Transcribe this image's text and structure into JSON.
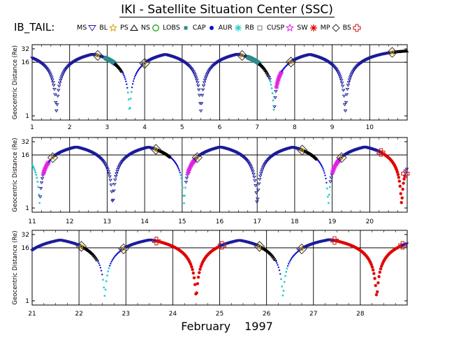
{
  "title": "IKI - Satellite Situation Center (SSC)",
  "legend_label": "IB_TAIL:",
  "legend": [
    {
      "label": "MS",
      "symbol": "triangle-down",
      "color": "#1a1a9a",
      "icon": "triangle-down-icon"
    },
    {
      "label": "BL",
      "symbol": "star-open",
      "color": "#d4a000",
      "icon": "star-icon"
    },
    {
      "label": "PS",
      "symbol": "triangle-up",
      "color": "#000000",
      "icon": "triangle-up-icon"
    },
    {
      "label": "NS",
      "symbol": "circle-open",
      "color": "#22b022",
      "icon": "circle-icon"
    },
    {
      "label": "LOBS",
      "symbol": "square",
      "color": "#2e8b8b",
      "icon": "square-icon"
    },
    {
      "label": "CAP",
      "symbol": "dot",
      "color": "#1010d0",
      "icon": "dot-icon"
    },
    {
      "label": "AUR",
      "symbol": "asterisk",
      "color": "#22cccc",
      "icon": "asterisk-icon"
    },
    {
      "label": "RB",
      "symbol": "square-open",
      "color": "#555555",
      "icon": "square-outline-icon"
    },
    {
      "label": "CUSP",
      "symbol": "star-open",
      "color": "#e020e0",
      "icon": "star-outline-icon"
    },
    {
      "label": "SW",
      "symbol": "asterisk",
      "color": "#e00000",
      "icon": "asterisk-red-icon"
    },
    {
      "label": "MP",
      "symbol": "diamond-open",
      "color": "#333333",
      "icon": "diamond-icon"
    },
    {
      "label": "BS",
      "symbol": "plus-open",
      "color": "#d02020",
      "icon": "plus-outline-icon"
    }
  ],
  "footer": {
    "month": "February",
    "year": "1997"
  },
  "chart_data": [
    {
      "type": "scatter",
      "title": "",
      "ylabel": "Geocentric Distance (Re)",
      "xlabel": "",
      "x_range": [
        1,
        11
      ],
      "ylim": [
        1,
        32
      ],
      "y_scale": "log",
      "y_ticks": [
        1,
        16,
        32
      ],
      "x_ticks": [
        1,
        2,
        3,
        4,
        5,
        6,
        7,
        8,
        9,
        10
      ],
      "grid": true,
      "orbit": {
        "perigee_days": [
          3.6,
          7.45
        ],
        "apogee_days": [
          1.65,
          5.5,
          9.35
        ],
        "perigee_distance": 1.3,
        "apogee_distance": 29
      },
      "segments": [
        {
          "region": "MS",
          "from": 1.0,
          "to": 2.7
        },
        {
          "region": "MP",
          "at": 2.75
        },
        {
          "region": "LOBS",
          "from": 2.95,
          "to": 3.2
        },
        {
          "region": "PS",
          "from": 3.2,
          "to": 3.4
        },
        {
          "region": "CAP",
          "from": 3.4,
          "to": 3.6
        },
        {
          "region": "AUR",
          "from": 3.55,
          "to": 3.65
        },
        {
          "region": "CAP",
          "from": 3.65,
          "to": 3.95
        },
        {
          "region": "MP",
          "at": 4.0
        },
        {
          "region": "MS",
          "from": 4.0,
          "to": 6.55
        },
        {
          "region": "MP",
          "at": 6.6
        },
        {
          "region": "LOBS",
          "from": 6.75,
          "to": 7.05
        },
        {
          "region": "PS",
          "from": 7.05,
          "to": 7.3
        },
        {
          "region": "AUR",
          "from": 7.35,
          "to": 7.45
        },
        {
          "region": "CUSP",
          "from": 7.5,
          "to": 7.65
        },
        {
          "region": "CAP",
          "from": 7.65,
          "to": 7.85
        },
        {
          "region": "MP",
          "at": 7.9
        },
        {
          "region": "MS",
          "from": 7.9,
          "to": 10.55
        },
        {
          "region": "MP",
          "at": 10.6
        },
        {
          "region": "PS",
          "from": 10.6,
          "to": 11.0
        }
      ]
    },
    {
      "type": "scatter",
      "title": "",
      "ylabel": "Geocentric Distance (Re)",
      "xlabel": "",
      "x_range": [
        11,
        21
      ],
      "ylim": [
        1,
        32
      ],
      "y_scale": "log",
      "y_ticks": [
        1,
        16,
        32
      ],
      "x_ticks": [
        11,
        12,
        13,
        14,
        15,
        16,
        17,
        18,
        19,
        20
      ],
      "grid": true,
      "orbit": {
        "perigee_days": [
          11.2,
          15.05,
          18.9
        ],
        "apogee_days": [
          13.15,
          17.0,
          20.85
        ],
        "perigee_distance": 1.3,
        "apogee_distance": 29
      },
      "segments": [
        {
          "region": "AUR",
          "from": 11.0,
          "to": 11.2
        },
        {
          "region": "CUSP",
          "from": 11.3,
          "to": 11.45
        },
        {
          "region": "CAP",
          "from": 11.45,
          "to": 11.55
        },
        {
          "region": "MP",
          "at": 11.55
        },
        {
          "region": "MS",
          "from": 11.55,
          "to": 14.3
        },
        {
          "region": "MP",
          "at": 14.3
        },
        {
          "region": "PS",
          "from": 14.3,
          "to": 14.7
        },
        {
          "region": "CAP",
          "from": 14.7,
          "to": 14.95
        },
        {
          "region": "AUR",
          "from": 14.95,
          "to": 15.1
        },
        {
          "region": "CUSP",
          "from": 15.15,
          "to": 15.35
        },
        {
          "region": "MP",
          "at": 15.4
        },
        {
          "region": "MS",
          "from": 15.4,
          "to": 18.2
        },
        {
          "region": "MP",
          "at": 18.2
        },
        {
          "region": "PS",
          "from": 18.2,
          "to": 18.6
        },
        {
          "region": "CAP",
          "from": 18.6,
          "to": 18.85
        },
        {
          "region": "AUR",
          "from": 18.85,
          "to": 18.95
        },
        {
          "region": "CUSP",
          "from": 19.0,
          "to": 19.2
        },
        {
          "region": "MP",
          "at": 19.25
        },
        {
          "region": "MS",
          "from": 19.25,
          "to": 20.2
        },
        {
          "region": "BS",
          "at": 20.3
        },
        {
          "region": "SW",
          "from": 20.3,
          "to": 20.95
        },
        {
          "region": "BS",
          "at": 20.95
        }
      ]
    },
    {
      "type": "scatter",
      "title": "",
      "ylabel": "Geocentric Distance (Re)",
      "xlabel": "",
      "x_range": [
        21,
        29
      ],
      "ylim": [
        1,
        32
      ],
      "y_scale": "log",
      "y_ticks": [
        1,
        16,
        32
      ],
      "x_ticks": [
        21,
        22,
        23,
        24,
        25,
        26,
        27,
        28
      ],
      "grid": true,
      "orbit": {
        "perigee_days": [
          22.55,
          26.35
        ],
        "apogee_days": [
          20.65,
          24.5,
          28.35
        ],
        "perigee_distance": 1.3,
        "apogee_distance": 29
      },
      "segments": [
        {
          "region": "MS",
          "from": 21.0,
          "to": 22.05
        },
        {
          "region": "MP",
          "at": 22.05
        },
        {
          "region": "PS",
          "from": 22.05,
          "to": 22.4
        },
        {
          "region": "CAP",
          "from": 22.4,
          "to": 22.5
        },
        {
          "region": "AUR",
          "from": 22.5,
          "to": 22.65
        },
        {
          "region": "CAP",
          "from": 22.65,
          "to": 22.9
        },
        {
          "region": "MP",
          "at": 22.95
        },
        {
          "region": "MS",
          "from": 22.95,
          "to": 23.65
        },
        {
          "region": "BS",
          "at": 23.65
        },
        {
          "region": "SW",
          "from": 23.65,
          "to": 25.0
        },
        {
          "region": "BS",
          "at": 25.05
        },
        {
          "region": "MS",
          "from": 25.05,
          "to": 25.85
        },
        {
          "region": "MP",
          "at": 25.85
        },
        {
          "region": "PS",
          "from": 25.85,
          "to": 26.2
        },
        {
          "region": "CAP",
          "from": 26.2,
          "to": 26.3
        },
        {
          "region": "AUR",
          "from": 26.3,
          "to": 26.45
        },
        {
          "region": "CAP",
          "from": 26.45,
          "to": 26.7
        },
        {
          "region": "MP",
          "at": 26.75
        },
        {
          "region": "MS",
          "from": 26.75,
          "to": 27.45
        },
        {
          "region": "BS",
          "at": 27.45
        },
        {
          "region": "SW",
          "from": 27.45,
          "to": 28.9
        },
        {
          "region": "BS",
          "at": 28.9
        }
      ]
    }
  ]
}
